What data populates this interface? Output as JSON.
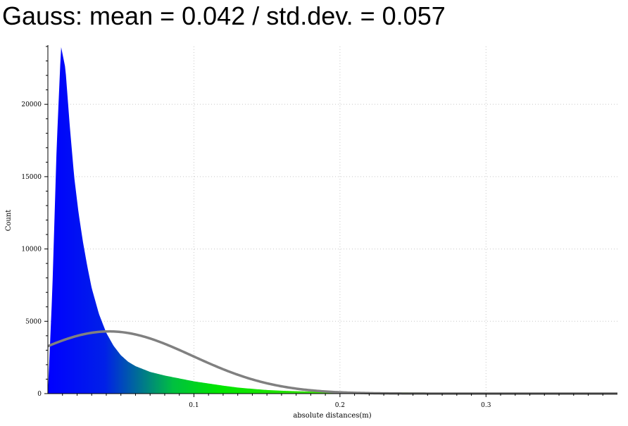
{
  "title": "Gauss: mean = 0.042 / std.dev. = 0.057",
  "chart_data": {
    "type": "bar",
    "title": "Gauss: mean = 0.042 / std.dev. = 0.057",
    "xlabel": "absolute distances(m)",
    "ylabel": "Count",
    "xlim": [
      0.0,
      0.39
    ],
    "ylim": [
      0,
      24000
    ],
    "x_ticks": [
      0.1,
      0.2,
      0.3
    ],
    "x_tick_labels": [
      "0.1",
      "0.2",
      "0.3"
    ],
    "y_ticks": [
      0,
      5000,
      10000,
      15000,
      20000
    ],
    "y_tick_labels": [
      "0",
      "5000",
      "10000",
      "15000",
      "20000"
    ],
    "grid": true,
    "histogram": {
      "x": [
        0.0,
        0.003,
        0.006,
        0.009,
        0.012,
        0.015,
        0.018,
        0.021,
        0.024,
        0.027,
        0.03,
        0.035,
        0.04,
        0.045,
        0.05,
        0.055,
        0.06,
        0.065,
        0.07,
        0.08,
        0.09,
        0.1,
        0.11,
        0.12,
        0.13,
        0.14,
        0.15,
        0.16,
        0.18,
        0.2,
        0.25,
        0.3,
        0.35,
        0.39
      ],
      "y": [
        0,
        7000,
        17000,
        24000,
        22500,
        18500,
        15000,
        12500,
        10500,
        8800,
        7300,
        5500,
        4200,
        3300,
        2650,
        2200,
        1900,
        1700,
        1500,
        1250,
        1050,
        850,
        700,
        550,
        420,
        330,
        250,
        200,
        140,
        110,
        80,
        55,
        40,
        30
      ],
      "color_scale": [
        "#0000ff",
        "#00e600",
        "#cccc00"
      ]
    },
    "series": [
      {
        "name": "Gauss",
        "mean": 0.042,
        "std_dev": 0.057,
        "peak_count": 4300,
        "color": "#808080"
      }
    ]
  }
}
